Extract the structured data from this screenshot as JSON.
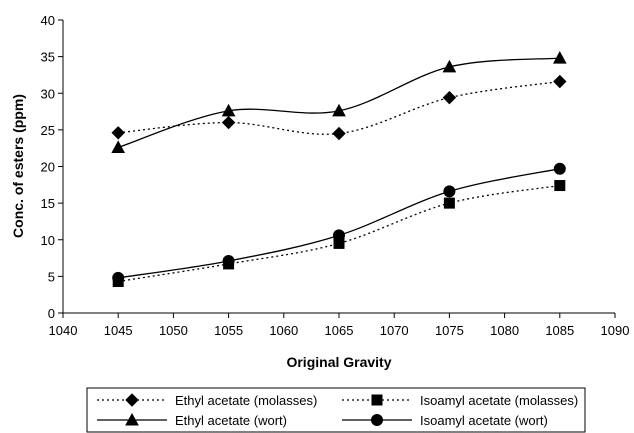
{
  "chart_data": {
    "type": "line",
    "title": "",
    "xlabel": "Original Gravity",
    "ylabel": "Conc. of esters (ppm)",
    "xlim": [
      1040,
      1090
    ],
    "ylim": [
      0,
      40
    ],
    "x_ticks": [
      1040,
      1045,
      1050,
      1055,
      1060,
      1065,
      1070,
      1075,
      1080,
      1085,
      1090
    ],
    "y_ticks": [
      0,
      5,
      10,
      15,
      20,
      25,
      30,
      35,
      40
    ],
    "grid": false,
    "legend_position": "bottom",
    "x": [
      1045,
      1055,
      1065,
      1075,
      1085
    ],
    "series": [
      {
        "name": "Ethyl acetate (molasses)",
        "values": [
          24.6,
          26.0,
          24.5,
          29.4,
          31.6
        ],
        "marker": "diamond",
        "line": "dotted"
      },
      {
        "name": "Isoamyl acetate (molasses)",
        "values": [
          4.3,
          6.7,
          9.5,
          15.0,
          17.4
        ],
        "marker": "square",
        "line": "dotted"
      },
      {
        "name": "Ethyl acetate (wort)",
        "values": [
          22.6,
          27.6,
          27.6,
          33.6,
          34.8
        ],
        "marker": "triangle",
        "line": "solid"
      },
      {
        "name": "Isoamyl acetate (wort)",
        "values": [
          4.8,
          7.1,
          10.6,
          16.6,
          19.7
        ],
        "marker": "circle",
        "line": "solid"
      }
    ]
  }
}
